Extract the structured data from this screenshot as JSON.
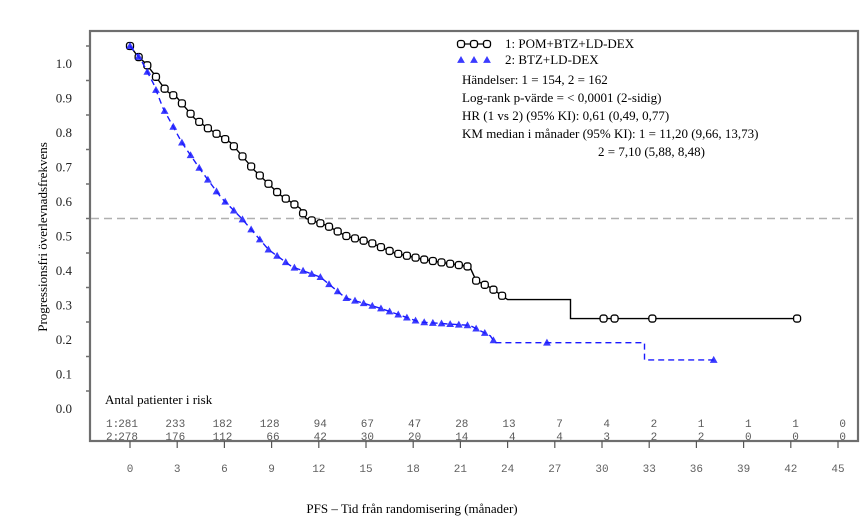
{
  "chart_data": {
    "type": "line",
    "subtype": "kaplan-meier",
    "title": "",
    "xlabel": "PFS – Tid från randomisering (månader)",
    "ylabel": "Progressionsfri överlevnadsfrekvens",
    "xlim": [
      0,
      45
    ],
    "ylim": [
      0,
      1.0
    ],
    "x_ticks": [
      0,
      3,
      6,
      9,
      12,
      15,
      18,
      21,
      24,
      27,
      30,
      33,
      36,
      39,
      42,
      45
    ],
    "y_ticks": [
      "1.0",
      "0.9",
      "0.8",
      "0.7",
      "0.6",
      "0.5",
      "0.4",
      "0.3",
      "0.2",
      "0.1",
      "0.0"
    ],
    "y_tick_values": [
      1.0,
      0.9,
      0.8,
      0.7,
      0.6,
      0.5,
      0.4,
      0.3,
      0.2,
      0.1,
      0.0
    ],
    "grid": false,
    "reference_line": {
      "y": 0.5,
      "style": "dashed",
      "color": "#b0b0b0"
    },
    "legend_position": "top-right",
    "series": [
      {
        "name": "1: POM+BTZ+LD-DEX",
        "color": "#000000",
        "line_style": "solid",
        "marker": "square-circle",
        "points": [
          [
            0,
            1.0
          ],
          [
            0.5,
            0.97
          ],
          [
            1.0,
            0.95
          ],
          [
            1.5,
            0.92
          ],
          [
            2.3,
            0.87
          ],
          [
            3.0,
            0.85
          ],
          [
            4.1,
            0.79
          ],
          [
            5.0,
            0.76
          ],
          [
            6.4,
            0.72
          ],
          [
            7.9,
            0.64
          ],
          [
            9.5,
            0.57
          ],
          [
            10.8,
            0.53
          ],
          [
            11.2,
            0.5
          ],
          [
            12.5,
            0.48
          ],
          [
            13.7,
            0.45
          ],
          [
            15.3,
            0.43
          ],
          [
            16.8,
            0.4
          ],
          [
            18.8,
            0.38
          ],
          [
            21.6,
            0.36
          ],
          [
            22.0,
            0.32
          ],
          [
            22.9,
            0.3
          ],
          [
            24.0,
            0.265
          ],
          [
            28.0,
            0.265
          ],
          [
            28.0,
            0.21
          ],
          [
            42.4,
            0.21
          ]
        ],
        "censor_times": [
          30.1,
          30.8,
          33.2,
          42.4
        ]
      },
      {
        "name": "2: BTZ+LD-DEX",
        "color": "#1a1aff",
        "line_style": "dashed",
        "marker": "triangle",
        "points": [
          [
            0,
            1.0
          ],
          [
            0.7,
            0.96
          ],
          [
            1.5,
            0.89
          ],
          [
            2.1,
            0.82
          ],
          [
            3.3,
            0.72
          ],
          [
            4.5,
            0.64
          ],
          [
            5.8,
            0.56
          ],
          [
            7.1,
            0.5
          ],
          [
            8.8,
            0.41
          ],
          [
            10.3,
            0.36
          ],
          [
            12.1,
            0.33
          ],
          [
            13.7,
            0.27
          ],
          [
            15.9,
            0.24
          ],
          [
            18.4,
            0.2
          ],
          [
            21.6,
            0.19
          ],
          [
            22.9,
            0.16
          ],
          [
            23.2,
            0.14
          ],
          [
            32.7,
            0.14
          ],
          [
            32.7,
            0.09
          ],
          [
            37.1,
            0.09
          ]
        ],
        "censor_times": [
          26.5,
          37.1
        ]
      }
    ],
    "annotations": [
      "Händelser: 1 = 154, 2 = 162",
      "Log-rank p-värde = < 0,0001 (2-sidig)",
      "HR (1 vs 2) (95% KI):  0,61 (0,49, 0,77)",
      "KM median i månader (95% KI): 1 = 11,20 (9,66, 13,73)",
      "2 = 7,10 (5,88, 8,48)"
    ],
    "risk_table": {
      "title": "Antal patienter i risk",
      "times": [
        0,
        3,
        6,
        9,
        12,
        15,
        18,
        21,
        24,
        27,
        30,
        33,
        36,
        39,
        42,
        45
      ],
      "rows": [
        {
          "label": "1:",
          "values": [
            281,
            233,
            182,
            128,
            94,
            67,
            47,
            28,
            13,
            7,
            4,
            2,
            1,
            1,
            1,
            0
          ]
        },
        {
          "label": "2:",
          "values": [
            278,
            176,
            112,
            66,
            42,
            30,
            20,
            14,
            4,
            4,
            3,
            2,
            2,
            0,
            0,
            0
          ]
        }
      ]
    }
  }
}
